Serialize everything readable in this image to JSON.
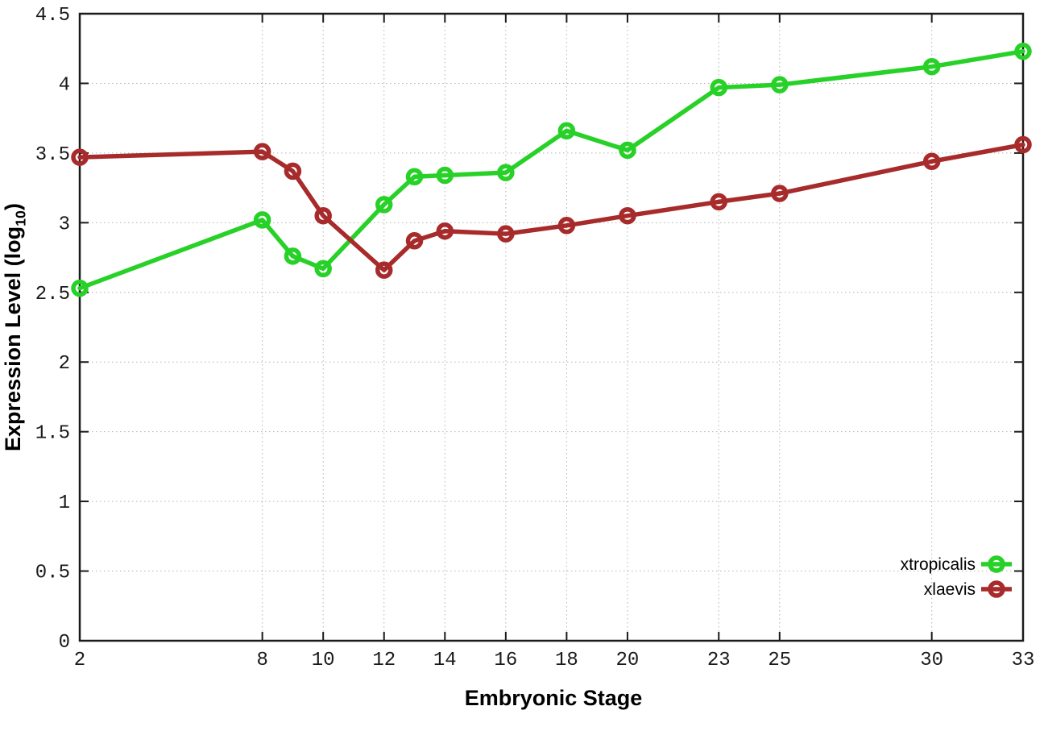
{
  "chart_data": {
    "type": "line",
    "title": "",
    "xlabel": "Embryonic Stage",
    "ylabel": "Expression Level (log10)",
    "ylabel_parts": {
      "pre": "Expression Level (log",
      "sub": "10",
      "post": ")"
    },
    "x": [
      2,
      8,
      9,
      10,
      12,
      13,
      14,
      16,
      18,
      20,
      23,
      25,
      30,
      33
    ],
    "series": [
      {
        "name": "xtropicalis",
        "color": "#27d127",
        "values": [
          2.53,
          3.02,
          2.76,
          2.67,
          3.13,
          3.33,
          3.34,
          3.36,
          3.66,
          3.52,
          3.97,
          3.99,
          4.12,
          4.23
        ]
      },
      {
        "name": "xlaevis",
        "color": "#a82b2b",
        "values": [
          3.47,
          3.51,
          3.37,
          3.05,
          2.66,
          2.87,
          2.94,
          2.92,
          2.98,
          3.05,
          3.15,
          3.21,
          3.44,
          3.56
        ]
      }
    ],
    "xlim": [
      2,
      33
    ],
    "ylim": [
      0,
      4.5
    ],
    "xticks": [
      2,
      8,
      10,
      12,
      14,
      16,
      18,
      20,
      23,
      25,
      30,
      33
    ],
    "yticks": [
      0,
      0.5,
      1,
      1.5,
      2,
      2.5,
      3,
      3.5,
      4,
      4.5
    ],
    "grid": true,
    "grid_style": "dotted",
    "grid_color": "#b4b4b4",
    "axis_color": "#1a1a1a",
    "background": "#ffffff",
    "marker": "open-circle",
    "legend_position": "bottom-right"
  }
}
